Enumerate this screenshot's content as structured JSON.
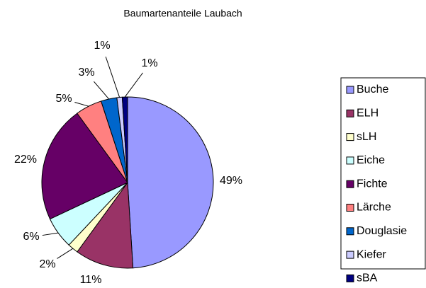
{
  "chart_data": {
    "type": "pie",
    "title": "Baumartenanteile Laubach",
    "categories": [
      "Buche",
      "ELH",
      "sLH",
      "Eiche",
      "Fichte",
      "Lärche",
      "Douglasie",
      "Kiefer",
      "sBA"
    ],
    "values": [
      49,
      11,
      2,
      6,
      22,
      5,
      3,
      1,
      1
    ],
    "value_labels": [
      "49%",
      "11%",
      "2%",
      "6%",
      "22%",
      "5%",
      "3%",
      "1%",
      "1%"
    ],
    "colors": [
      "#9999ff",
      "#993366",
      "#ffffcc",
      "#ccffff",
      "#660066",
      "#ff8080",
      "#0066cc",
      "#ccccff",
      "#000080"
    ],
    "legend": "right"
  }
}
